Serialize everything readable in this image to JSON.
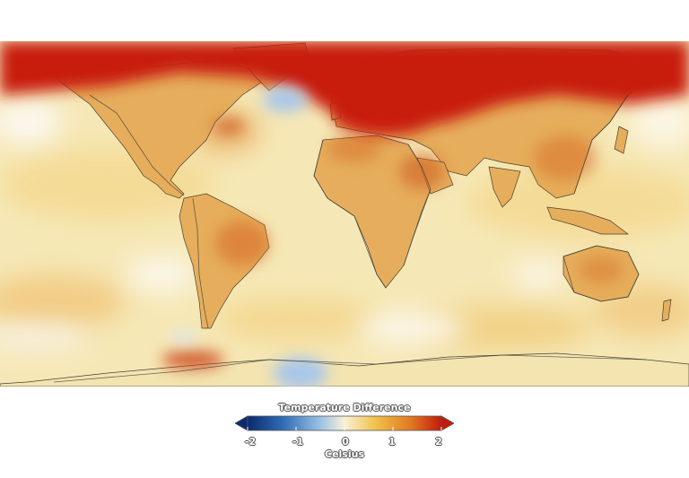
{
  "legend": {
    "title": "Temperature Difference",
    "unit": "Celsius",
    "ticks": [
      "-2",
      "-1",
      "0",
      "1",
      "2"
    ],
    "range": [
      -2,
      2
    ],
    "colors": [
      "#0b2a6e",
      "#2f6bb3",
      "#9fc3e6",
      "#f7f1d6",
      "#f2c14a",
      "#e07a22",
      "#c41a0c"
    ]
  },
  "map": {
    "colors": {
      "arctic": "#c81a0a",
      "warm_land": "#e3a14b",
      "hot_spot": "#d8742e",
      "ocean_base": "#f6e8b6",
      "cool_spot": "#a9c6ea",
      "coastline": "#3a3a3a"
    }
  }
}
